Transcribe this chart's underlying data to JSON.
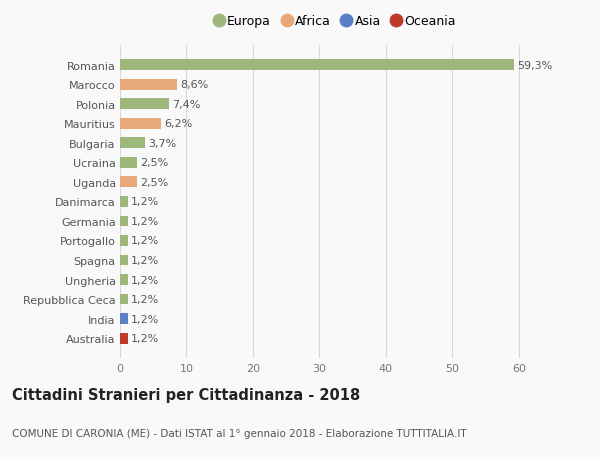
{
  "categories": [
    "Australia",
    "India",
    "Repubblica Ceca",
    "Ungheria",
    "Spagna",
    "Portogallo",
    "Germania",
    "Danimarca",
    "Uganda",
    "Ucraina",
    "Bulgaria",
    "Mauritius",
    "Polonia",
    "Marocco",
    "Romania"
  ],
  "values": [
    1.2,
    1.2,
    1.2,
    1.2,
    1.2,
    1.2,
    1.2,
    1.2,
    2.5,
    2.5,
    3.7,
    6.2,
    7.4,
    8.6,
    59.3
  ],
  "labels": [
    "1,2%",
    "1,2%",
    "1,2%",
    "1,2%",
    "1,2%",
    "1,2%",
    "1,2%",
    "1,2%",
    "2,5%",
    "2,5%",
    "3,7%",
    "6,2%",
    "7,4%",
    "8,6%",
    "59,3%"
  ],
  "colors": [
    "#c0392b",
    "#5b7fc7",
    "#9db87a",
    "#9db87a",
    "#9db87a",
    "#9db87a",
    "#9db87a",
    "#9db87a",
    "#e8a97a",
    "#9db87a",
    "#9db87a",
    "#e8a97a",
    "#9db87a",
    "#e8a97a",
    "#9db87a"
  ],
  "legend": [
    {
      "label": "Europa",
      "color": "#9db87a"
    },
    {
      "label": "Africa",
      "color": "#e8a97a"
    },
    {
      "label": "Asia",
      "color": "#5b7fc7"
    },
    {
      "label": "Oceania",
      "color": "#c0392b"
    }
  ],
  "xlim": [
    0,
    65
  ],
  "xticks": [
    0,
    10,
    20,
    30,
    40,
    50,
    60
  ],
  "title": "Cittadini Stranieri per Cittadinanza - 2018",
  "subtitle": "COMUNE DI CARONIA (ME) - Dati ISTAT al 1° gennaio 2018 - Elaborazione TUTTITALIA.IT",
  "background_color": "#f9f9f9",
  "grid_color": "#d8d8d8",
  "bar_height": 0.55,
  "label_fontsize": 8,
  "ytick_fontsize": 8,
  "xtick_fontsize": 8,
  "title_fontsize": 10.5,
  "subtitle_fontsize": 7.5,
  "legend_fontsize": 9
}
